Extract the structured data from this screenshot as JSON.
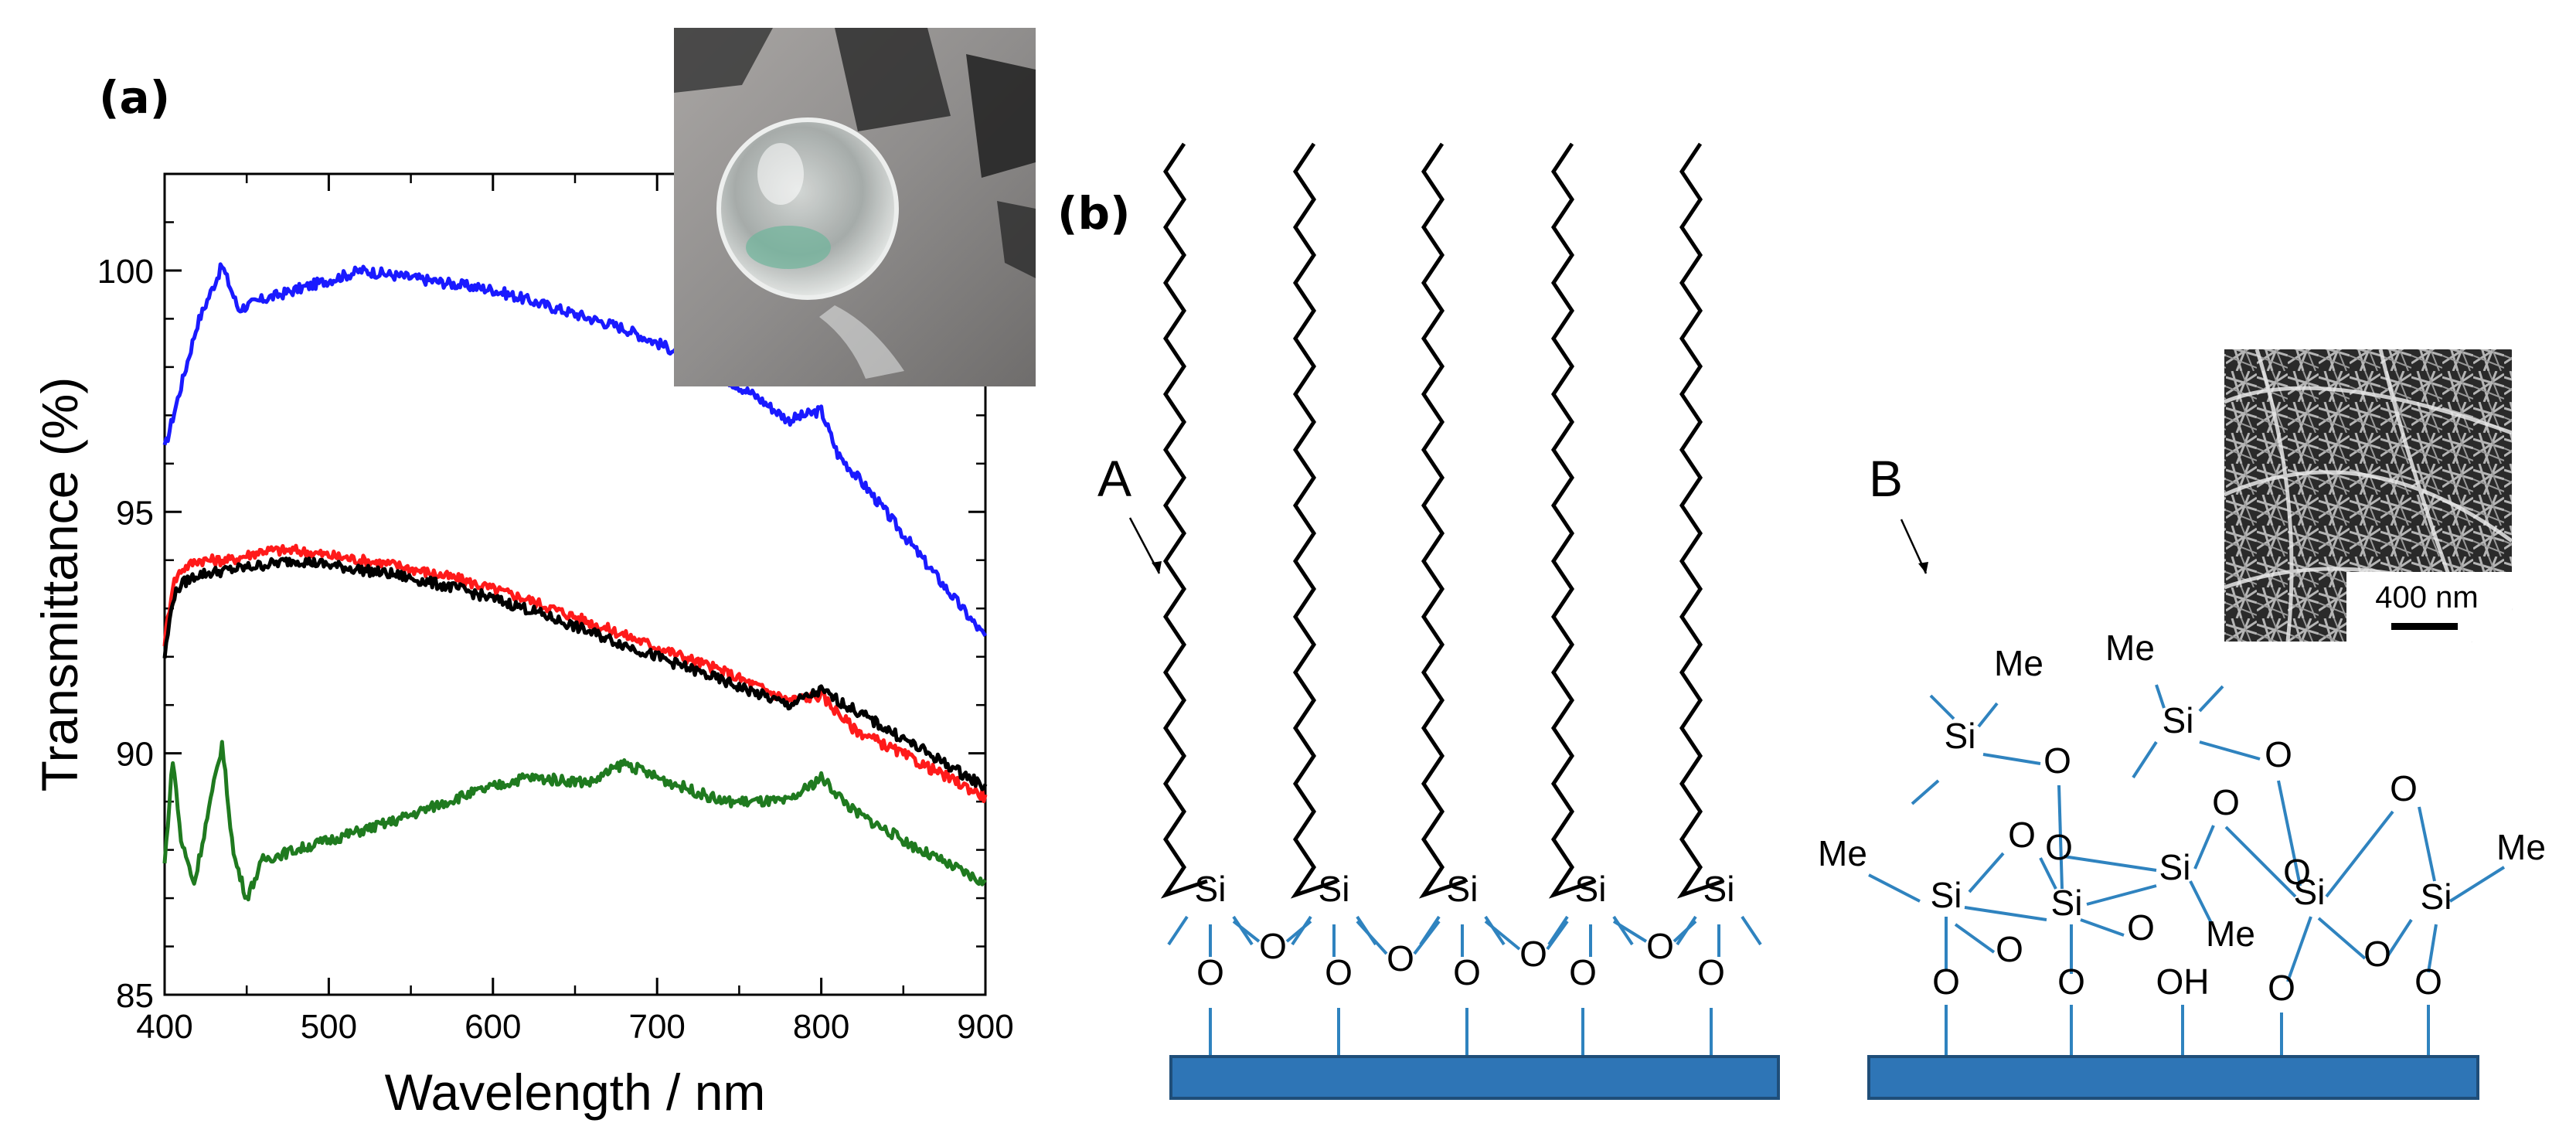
{
  "panels": {
    "a": {
      "label": "(a)"
    },
    "b": {
      "label": "(b)"
    }
  },
  "chart_data": {
    "type": "line",
    "title": "",
    "xlabel": "Wavelength / nm",
    "ylabel": "Transmittance (%)",
    "xlim": [
      400,
      900
    ],
    "ylim": [
      85,
      102
    ],
    "xticks": [
      400,
      500,
      600,
      700,
      800,
      900
    ],
    "yticks": [
      85,
      90,
      95,
      100
    ],
    "xtick_labels": [
      "400",
      "500",
      "600",
      "700",
      "800",
      "900"
    ],
    "ytick_labels": [
      "85",
      "90",
      "95",
      "100"
    ],
    "grid": false,
    "legend": "none",
    "series": [
      {
        "color": "#1a1aff",
        "x": [
          400,
          410,
          420,
          435,
          445,
          460,
          480,
          500,
          520,
          540,
          560,
          600,
          640,
          680,
          720,
          760,
          780,
          800,
          810,
          830,
          860,
          900
        ],
        "y": [
          96.3,
          97.6,
          98.9,
          100.1,
          99.2,
          99.4,
          99.6,
          99.8,
          100.0,
          99.9,
          99.8,
          99.6,
          99.2,
          98.8,
          98.2,
          97.4,
          96.9,
          97.1,
          96.2,
          95.4,
          94.1,
          92.4
        ]
      },
      {
        "color": "#ff1a1a",
        "x": [
          400,
          405,
          410,
          420,
          440,
          460,
          480,
          500,
          540,
          580,
          620,
          660,
          700,
          740,
          780,
          800,
          820,
          860,
          900
        ],
        "y": [
          92.3,
          93.5,
          93.8,
          94.0,
          94.0,
          94.2,
          94.2,
          94.1,
          93.9,
          93.6,
          93.2,
          92.7,
          92.2,
          91.7,
          91.1,
          91.2,
          90.5,
          89.8,
          89.1
        ]
      },
      {
        "color": "#000000",
        "x": [
          400,
          405,
          410,
          420,
          440,
          460,
          480,
          500,
          540,
          580,
          620,
          660,
          700,
          740,
          780,
          800,
          820,
          860,
          900
        ],
        "y": [
          92.0,
          93.2,
          93.5,
          93.7,
          93.8,
          93.9,
          94.0,
          93.9,
          93.7,
          93.4,
          93.0,
          92.5,
          92.0,
          91.5,
          91.0,
          91.3,
          90.9,
          90.1,
          89.3
        ]
      },
      {
        "color": "#1f7a1f",
        "x": [
          400,
          405,
          410,
          418,
          425,
          435,
          442,
          450,
          460,
          470,
          500,
          540,
          580,
          620,
          660,
          680,
          700,
          740,
          780,
          800,
          820,
          860,
          900
        ],
        "y": [
          87.7,
          89.9,
          88.2,
          87.3,
          88.5,
          90.2,
          87.9,
          87.0,
          87.8,
          87.9,
          88.2,
          88.6,
          89.1,
          89.5,
          89.4,
          89.8,
          89.5,
          89.0,
          89.0,
          89.5,
          88.8,
          88.0,
          87.3
        ]
      }
    ]
  },
  "schematic": {
    "A": {
      "label": "A",
      "atoms": {
        "si": [
          "Si",
          "Si",
          "Si",
          "Si",
          "Si"
        ],
        "o_bridge": [
          "O",
          "O",
          "O",
          "O"
        ],
        "o_bottom": [
          "O",
          "O",
          "O",
          "O",
          "O"
        ]
      }
    },
    "B": {
      "label": "B",
      "atoms": {
        "si": [
          "Si",
          "Si",
          "Si",
          "Si",
          "Si",
          "Si",
          "Si"
        ],
        "o": [
          "O",
          "O",
          "O",
          "O",
          "O",
          "O",
          "O",
          "O",
          "O",
          "O",
          "O",
          "O",
          "O",
          "O"
        ],
        "oh": "OH",
        "me": [
          "Me",
          "Me",
          "Me",
          "Me",
          "Me"
        ]
      },
      "sem_scale_bar": "400 nm"
    }
  },
  "colors": {
    "bond": "#2f83bf",
    "substrate_fill": "#2e75b6",
    "substrate_stroke": "#1f4e79"
  }
}
